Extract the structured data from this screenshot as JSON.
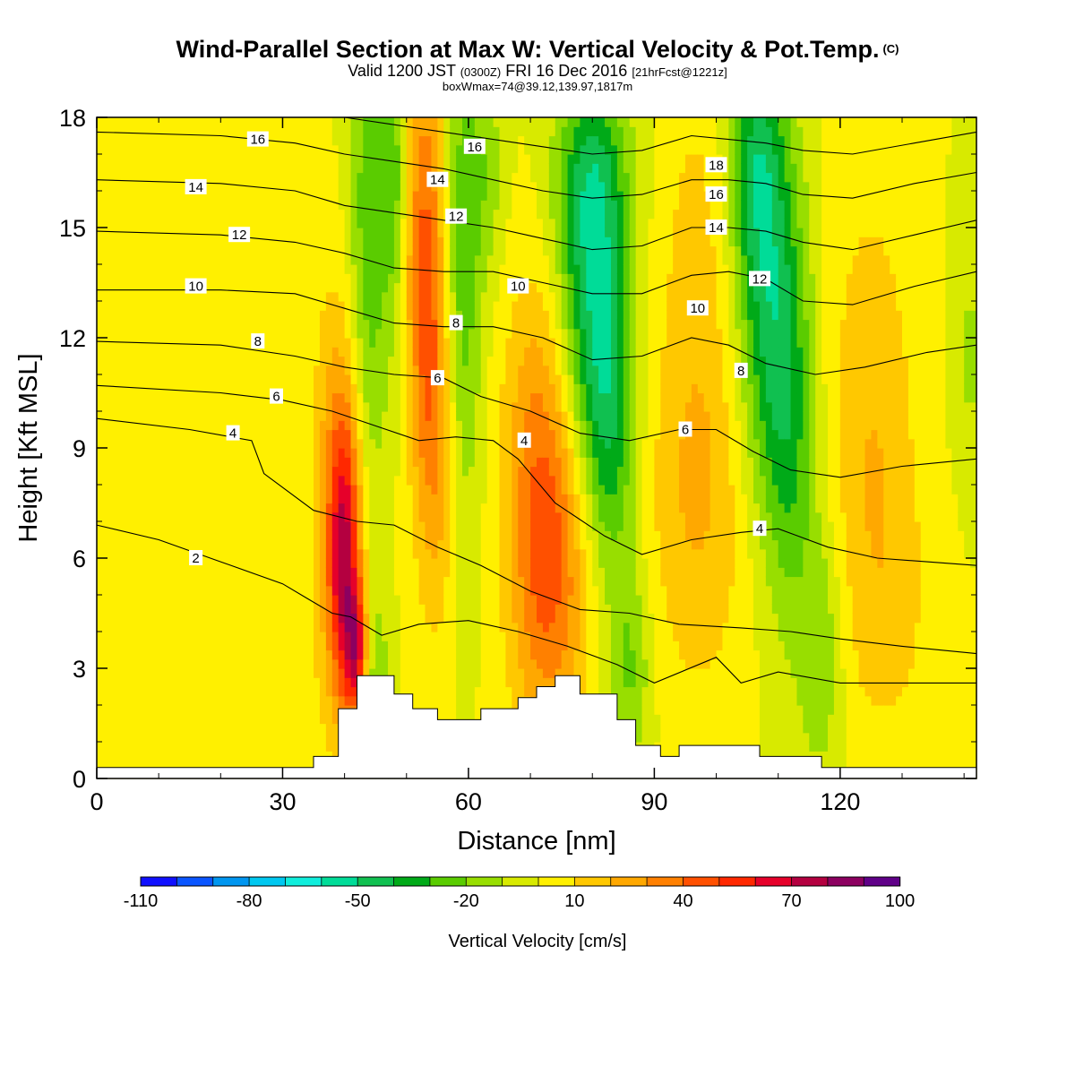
{
  "header": {
    "title": "Wind-Parallel Section at Max W: Vertical Velocity & Pot.Temp.",
    "title_mark": "(C)",
    "subtitle_a": "Valid 1200 JST",
    "subtitle_b": "(0300Z)",
    "subtitle_c": "FRI 16 Dec 2016",
    "subtitle_d": "[21hrFcst@1221z]",
    "note": "boxWmax=74@39.12,139.97,1817m"
  },
  "chart_data": {
    "type": "heatmap",
    "xlabel": "Distance [nm]",
    "ylabel": "Height [Kft MSL]",
    "xlim": [
      0,
      142
    ],
    "ylim": [
      0,
      18
    ],
    "x_ticks": [
      0,
      30,
      60,
      90,
      120
    ],
    "y_ticks": [
      0,
      3,
      6,
      9,
      12,
      15,
      18
    ],
    "colorbar": {
      "label": "Vertical Velocity [cm/s]",
      "range": [
        -110,
        110
      ],
      "step": 10,
      "tick_labels": [
        "-110",
        "-80",
        "-50",
        "-20",
        "10",
        "40",
        "70",
        "100"
      ],
      "colors": [
        "#1010ff",
        "#0a55ff",
        "#0096f0",
        "#00c8f0",
        "#10eedc",
        "#00dc98",
        "#10c050",
        "#00aa18",
        "#5acc00",
        "#98de00",
        "#d8ea00",
        "#fff000",
        "#ffc800",
        "#ffa800",
        "#ff8000",
        "#ff5000",
        "#ff2800",
        "#e6002a",
        "#b40040",
        "#8c0060",
        "#600088"
      ]
    },
    "background_value": 0,
    "vertical_velocity_features": [
      {
        "x": 2,
        "z": 1.6,
        "sx": 6,
        "sz": 1.6,
        "w": 8
      },
      {
        "x": 23,
        "z": 3.2,
        "sx": 12,
        "sz": 3,
        "w": 7
      },
      {
        "x": 40,
        "z": 5.8,
        "sx": 1.8,
        "sz": 2.8,
        "w": 60
      },
      {
        "x": 42,
        "z": 3.5,
        "sx": 1.2,
        "sz": 1.2,
        "w": 50
      },
      {
        "x": 39,
        "z": 8.5,
        "sx": 3,
        "sz": 4,
        "w": 24
      },
      {
        "x": 45,
        "z": 2.6,
        "sx": 1.5,
        "sz": 1.8,
        "w": -20
      },
      {
        "x": 44,
        "z": 14.5,
        "sx": 2.5,
        "sz": 5,
        "w": -28
      },
      {
        "x": 48,
        "z": 16.5,
        "sx": 1.2,
        "sz": 2.5,
        "w": -22
      },
      {
        "x": 53,
        "z": 14.5,
        "sx": 2.2,
        "sz": 4,
        "w": 40
      },
      {
        "x": 55,
        "z": 9,
        "sx": 2.5,
        "sz": 3.5,
        "w": 26
      },
      {
        "x": 59,
        "z": 13.5,
        "sx": 2.2,
        "sz": 5,
        "w": -28
      },
      {
        "x": 63,
        "z": 16.5,
        "sx": 2,
        "sz": 2,
        "w": -15
      },
      {
        "x": 73,
        "z": 5.8,
        "sx": 4.5,
        "sz": 3.5,
        "w": 44
      },
      {
        "x": 71,
        "z": 10.5,
        "sx": 4,
        "sz": 3,
        "w": 16
      },
      {
        "x": 80,
        "z": 13,
        "sx": 4,
        "sz": 3.5,
        "w": -42
      },
      {
        "x": 83,
        "z": 9.5,
        "sx": 3,
        "sz": 3,
        "w": -28
      },
      {
        "x": 80,
        "z": 16.5,
        "sx": 4,
        "sz": 2,
        "w": -25
      },
      {
        "x": 86,
        "z": 3,
        "sx": 2.5,
        "sz": 2,
        "w": -22
      },
      {
        "x": 97,
        "z": 8,
        "sx": 6,
        "sz": 4,
        "w": 22
      },
      {
        "x": 97,
        "z": 15.5,
        "sx": 4,
        "sz": 3,
        "w": 10
      },
      {
        "x": 108,
        "z": 13.5,
        "sx": 3.5,
        "sz": 4,
        "w": -40
      },
      {
        "x": 112,
        "z": 9.5,
        "sx": 3,
        "sz": 4,
        "w": -28
      },
      {
        "x": 106,
        "z": 16.8,
        "sx": 3,
        "sz": 2,
        "w": -25
      },
      {
        "x": 117,
        "z": 3.5,
        "sx": 2.5,
        "sz": 2.5,
        "w": -20
      },
      {
        "x": 125,
        "z": 10,
        "sx": 5,
        "sz": 4.5,
        "w": 18
      },
      {
        "x": 128,
        "z": 4.5,
        "sx": 6,
        "sz": 3,
        "w": 10
      },
      {
        "x": 141,
        "z": 11.5,
        "sx": 2,
        "sz": 2.5,
        "w": -12
      }
    ],
    "terrain": {
      "x": [
        0,
        35,
        35,
        39,
        39,
        42,
        42,
        48,
        48,
        51,
        51,
        55,
        55,
        62,
        62,
        68,
        68,
        71,
        71,
        74,
        74,
        78,
        78,
        84,
        84,
        87,
        87,
        91,
        91,
        94,
        94,
        107,
        107,
        117,
        117,
        120,
        120,
        142
      ],
      "z": [
        0.3,
        0.3,
        0.6,
        0.6,
        1.9,
        1.9,
        2.8,
        2.8,
        2.3,
        2.3,
        1.9,
        1.9,
        1.6,
        1.6,
        1.9,
        1.9,
        2.2,
        2.2,
        2.5,
        2.5,
        2.8,
        2.8,
        2.3,
        2.3,
        1.6,
        1.6,
        0.9,
        0.9,
        0.6,
        0.6,
        0.9,
        0.9,
        0.6,
        0.6,
        0.3,
        0.3,
        0.3,
        0.3
      ]
    },
    "theta_contours": [
      {
        "level": 2,
        "points": [
          [
            0,
            6.9
          ],
          [
            10,
            6.5
          ],
          [
            20,
            5.9
          ],
          [
            30,
            5.3
          ],
          [
            34,
            4.9
          ],
          [
            38,
            4.5
          ],
          [
            41,
            4.4
          ],
          [
            46,
            3.9
          ],
          [
            52,
            4.2
          ],
          [
            60,
            4.3
          ],
          [
            68,
            4.0
          ],
          [
            76,
            3.6
          ],
          [
            84,
            3.1
          ],
          [
            90,
            2.6
          ],
          [
            100,
            3.3
          ],
          [
            104,
            2.6
          ],
          [
            110,
            2.9
          ],
          [
            120,
            2.6
          ],
          [
            142,
            2.6
          ]
        ]
      },
      {
        "level": 4,
        "points": [
          [
            0,
            9.8
          ],
          [
            15,
            9.5
          ],
          [
            25,
            9.2
          ],
          [
            27,
            8.3
          ],
          [
            35,
            7.3
          ],
          [
            42,
            7.0
          ],
          [
            48,
            6.9
          ],
          [
            55,
            6.3
          ],
          [
            62,
            5.8
          ],
          [
            70,
            5.1
          ],
          [
            78,
            4.6
          ],
          [
            86,
            4.5
          ],
          [
            94,
            4.2
          ],
          [
            104,
            4.1
          ],
          [
            112,
            4.0
          ],
          [
            120,
            3.8
          ],
          [
            130,
            3.6
          ],
          [
            142,
            3.4
          ]
        ]
      },
      {
        "level": 6,
        "points": [
          [
            0,
            10.7
          ],
          [
            20,
            10.5
          ],
          [
            30,
            10.3
          ],
          [
            38,
            10.0
          ],
          [
            45,
            9.6
          ],
          [
            52,
            9.2
          ],
          [
            58,
            9.3
          ],
          [
            64,
            9.2
          ],
          [
            68,
            8.7
          ],
          [
            74,
            7.5
          ],
          [
            82,
            6.6
          ],
          [
            88,
            6.1
          ],
          [
            96,
            6.5
          ],
          [
            104,
            6.7
          ],
          [
            110,
            6.8
          ],
          [
            118,
            6.3
          ],
          [
            126,
            6.0
          ],
          [
            134,
            5.9
          ],
          [
            142,
            5.8
          ]
        ]
      },
      {
        "level": 8,
        "points": [
          [
            0,
            11.9
          ],
          [
            20,
            11.8
          ],
          [
            32,
            11.5
          ],
          [
            40,
            11.2
          ],
          [
            48,
            11.0
          ],
          [
            56,
            10.9
          ],
          [
            62,
            10.4
          ],
          [
            70,
            10.0
          ],
          [
            78,
            9.4
          ],
          [
            86,
            9.2
          ],
          [
            94,
            9.5
          ],
          [
            100,
            9.5
          ],
          [
            106,
            8.9
          ],
          [
            112,
            8.4
          ],
          [
            120,
            8.2
          ],
          [
            130,
            8.5
          ],
          [
            142,
            8.7
          ]
        ]
      },
      {
        "level": 10,
        "points": [
          [
            0,
            13.3
          ],
          [
            20,
            13.3
          ],
          [
            32,
            13.2
          ],
          [
            40,
            12.8
          ],
          [
            48,
            12.4
          ],
          [
            56,
            12.3
          ],
          [
            64,
            12.3
          ],
          [
            72,
            12.0
          ],
          [
            80,
            11.4
          ],
          [
            88,
            11.5
          ],
          [
            96,
            12.0
          ],
          [
            102,
            11.8
          ],
          [
            108,
            11.3
          ],
          [
            116,
            11.0
          ],
          [
            124,
            11.2
          ],
          [
            134,
            11.6
          ],
          [
            142,
            11.8
          ]
        ]
      },
      {
        "level": 12,
        "points": [
          [
            0,
            14.9
          ],
          [
            20,
            14.8
          ],
          [
            32,
            14.6
          ],
          [
            40,
            14.3
          ],
          [
            48,
            13.9
          ],
          [
            56,
            13.8
          ],
          [
            64,
            13.8
          ],
          [
            72,
            13.5
          ],
          [
            80,
            13.2
          ],
          [
            88,
            13.2
          ],
          [
            96,
            13.7
          ],
          [
            102,
            13.8
          ],
          [
            108,
            13.6
          ],
          [
            114,
            13.0
          ],
          [
            122,
            12.9
          ],
          [
            132,
            13.4
          ],
          [
            142,
            13.8
          ]
        ]
      },
      {
        "level": 14,
        "points": [
          [
            0,
            16.3
          ],
          [
            20,
            16.2
          ],
          [
            32,
            16.0
          ],
          [
            40,
            15.6
          ],
          [
            48,
            15.4
          ],
          [
            56,
            15.2
          ],
          [
            64,
            15.0
          ],
          [
            72,
            14.7
          ],
          [
            80,
            14.4
          ],
          [
            88,
            14.5
          ],
          [
            96,
            15.0
          ],
          [
            102,
            15.0
          ],
          [
            108,
            14.9
          ],
          [
            114,
            14.6
          ],
          [
            122,
            14.4
          ],
          [
            132,
            14.8
          ],
          [
            142,
            15.2
          ]
        ]
      },
      {
        "level": 16,
        "points": [
          [
            0,
            17.6
          ],
          [
            20,
            17.5
          ],
          [
            32,
            17.3
          ],
          [
            40,
            17.0
          ],
          [
            48,
            16.8
          ],
          [
            56,
            16.6
          ],
          [
            64,
            16.3
          ],
          [
            72,
            16.0
          ],
          [
            80,
            15.8
          ],
          [
            88,
            15.9
          ],
          [
            96,
            16.3
          ],
          [
            102,
            16.3
          ],
          [
            108,
            16.2
          ],
          [
            114,
            15.9
          ],
          [
            122,
            15.8
          ],
          [
            132,
            16.2
          ],
          [
            142,
            16.5
          ]
        ]
      },
      {
        "level": 18,
        "points": [
          [
            40,
            18.0
          ],
          [
            48,
            17.8
          ],
          [
            56,
            17.6
          ],
          [
            64,
            17.4
          ],
          [
            72,
            17.2
          ],
          [
            80,
            17.0
          ],
          [
            88,
            17.1
          ],
          [
            96,
            17.5
          ],
          [
            102,
            17.4
          ],
          [
            108,
            17.3
          ],
          [
            114,
            17.1
          ],
          [
            122,
            17.0
          ],
          [
            132,
            17.3
          ],
          [
            142,
            17.6
          ]
        ]
      }
    ],
    "contour_labels": [
      {
        "x": 26,
        "z": 17.4,
        "text": "16"
      },
      {
        "x": 16,
        "z": 16.1,
        "text": "14"
      },
      {
        "x": 23,
        "z": 14.8,
        "text": "12"
      },
      {
        "x": 16,
        "z": 13.4,
        "text": "10"
      },
      {
        "x": 26,
        "z": 11.9,
        "text": "8"
      },
      {
        "x": 29,
        "z": 10.4,
        "text": "6"
      },
      {
        "x": 22,
        "z": 9.4,
        "text": "4"
      },
      {
        "x": 16,
        "z": 6.0,
        "text": "2"
      },
      {
        "x": 61,
        "z": 17.2,
        "text": "16"
      },
      {
        "x": 55,
        "z": 16.3,
        "text": "14"
      },
      {
        "x": 58,
        "z": 15.3,
        "text": "12"
      },
      {
        "x": 68,
        "z": 13.4,
        "text": "10"
      },
      {
        "x": 58,
        "z": 12.4,
        "text": "8"
      },
      {
        "x": 55,
        "z": 10.9,
        "text": "6"
      },
      {
        "x": 69,
        "z": 9.2,
        "text": "4"
      },
      {
        "x": 100,
        "z": 16.7,
        "text": "18"
      },
      {
        "x": 100,
        "z": 15.9,
        "text": "16"
      },
      {
        "x": 100,
        "z": 15.0,
        "text": "14"
      },
      {
        "x": 107,
        "z": 13.6,
        "text": "12"
      },
      {
        "x": 97,
        "z": 12.8,
        "text": "10"
      },
      {
        "x": 104,
        "z": 11.1,
        "text": "8"
      },
      {
        "x": 95,
        "z": 9.5,
        "text": "6"
      },
      {
        "x": 107,
        "z": 6.8,
        "text": "4"
      }
    ]
  }
}
